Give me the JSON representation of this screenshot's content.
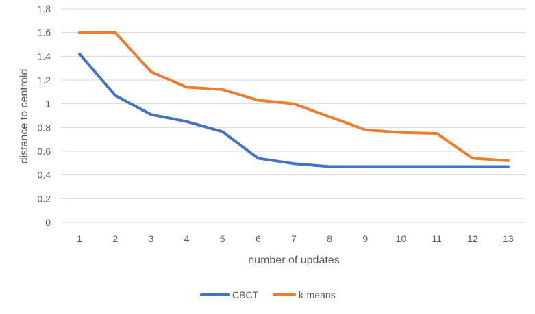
{
  "chart_data": {
    "type": "line",
    "title": "",
    "xlabel": "number of updates",
    "ylabel": "distance to centroid",
    "categories": [
      "1",
      "2",
      "3",
      "4",
      "5",
      "6",
      "7",
      "8",
      "9",
      "10",
      "11",
      "12",
      "13"
    ],
    "ylim": [
      0,
      1.8
    ],
    "yticks": [
      "0",
      "0.2",
      "0.4",
      "0.6",
      "0.8",
      "1",
      "1.2",
      "1.4",
      "1.6",
      "1.8"
    ],
    "grid": true,
    "legend": "bottom",
    "series": [
      {
        "name": "CBCT",
        "color": "#4472c4",
        "values": [
          1.42,
          1.07,
          0.91,
          0.85,
          0.765,
          0.54,
          0.495,
          0.47,
          0.47,
          0.47,
          0.47,
          0.47,
          0.47
        ]
      },
      {
        "name": "k-means",
        "color": "#ed7d31",
        "values": [
          1.6,
          1.6,
          1.27,
          1.14,
          1.12,
          1.03,
          1.0,
          0.89,
          0.78,
          0.757,
          0.75,
          0.54,
          0.52
        ]
      }
    ]
  }
}
